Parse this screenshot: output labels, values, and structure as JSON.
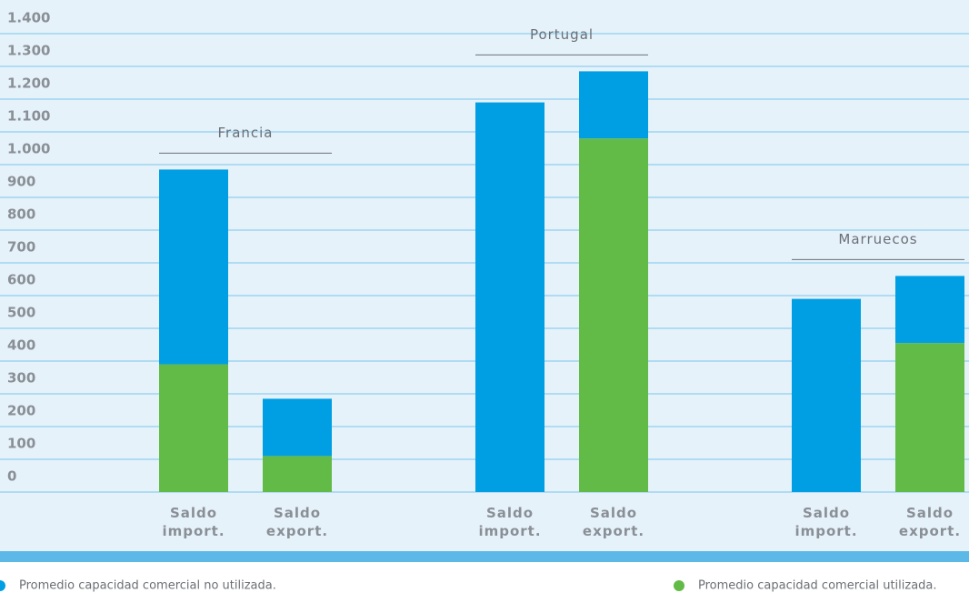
{
  "chart_data": {
    "type": "stacked_bar",
    "categories": [
      "Saldo import.",
      "Saldo export.",
      "Saldo import.",
      "Saldo export.",
      "Saldo import.",
      "Saldo export."
    ],
    "groups": [
      "Francia",
      "Portugal",
      "Marruecos"
    ],
    "series": [
      {
        "name": "Promedio capacidad comercial utilizada.",
        "color": "#62bb46",
        "values": [
          390,
          110,
          0,
          1080,
          0,
          455
        ]
      },
      {
        "name": "Promedio capacidad comercial no utilizada.",
        "color": "#009fe3",
        "values": [
          595,
          175,
          1190,
          205,
          590,
          205
        ]
      }
    ],
    "ylim": [
      0,
      1400
    ],
    "yticks": [
      0,
      100,
      200,
      300,
      400,
      500,
      600,
      700,
      800,
      900,
      {
        "value": 1000,
        "label": "1.000"
      },
      {
        "value": 1100,
        "label": "1.100"
      },
      {
        "value": 1200,
        "label": "1.200"
      },
      {
        "value": 1300,
        "label": "1.300"
      },
      {
        "value": 1400,
        "label": "1.400"
      }
    ],
    "grid": true
  }
}
